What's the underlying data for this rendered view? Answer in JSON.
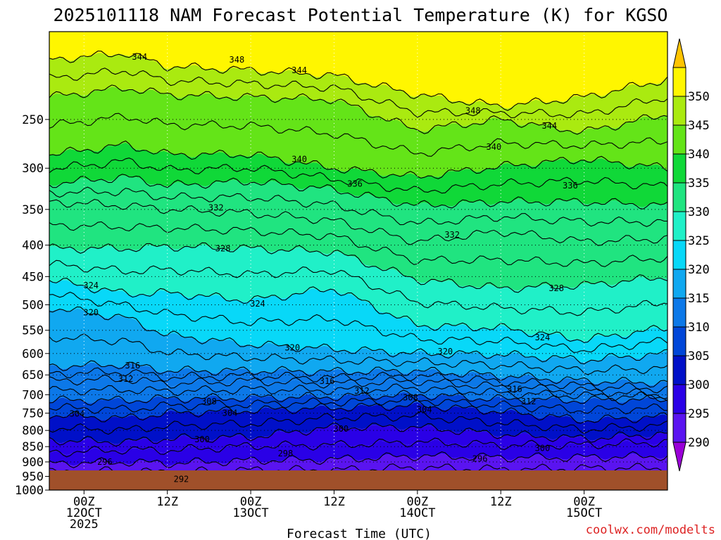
{
  "chart_data": {
    "type": "heatmap",
    "title": "2025101118 NAM Forecast Potential Temperature (K) for KGSO",
    "xlabel": "Forecast Time (UTC)",
    "ylabel": "",
    "credit": "coolwx.com/modelts",
    "x_range_hours": [
      -5,
      84
    ],
    "y_range_hpa": [
      1000,
      180
    ],
    "y_ticks": [
      "250",
      "300",
      "350",
      "400",
      "450",
      "500",
      "550",
      "600",
      "650",
      "700",
      "750",
      "800",
      "850",
      "900",
      "950",
      "1000"
    ],
    "x_ticks": [
      {
        "hour": 0,
        "lines": [
          "00Z",
          "12OCT",
          "2025"
        ]
      },
      {
        "hour": 12,
        "lines": [
          "12Z"
        ]
      },
      {
        "hour": 24,
        "lines": [
          "00Z",
          "13OCT"
        ]
      },
      {
        "hour": 36,
        "lines": [
          "12Z"
        ]
      },
      {
        "hour": 48,
        "lines": [
          "00Z",
          "14OCT"
        ]
      },
      {
        "hour": 60,
        "lines": [
          "12Z"
        ]
      },
      {
        "hour": 72,
        "lines": [
          "00Z",
          "15OCT"
        ]
      }
    ],
    "colorbar": {
      "min": 285,
      "max": 355,
      "labels": [
        "290",
        "295",
        "300",
        "305",
        "310",
        "315",
        "320",
        "325",
        "330",
        "335",
        "340",
        "345",
        "350"
      ],
      "colors": [
        "#9a00d8",
        "#5a14f0",
        "#2a00e6",
        "#0010c8",
        "#0046d8",
        "#0c78e8",
        "#10a8f0",
        "#08d8f8",
        "#20f0c8",
        "#20e480",
        "#10d838",
        "#64e418",
        "#aaea10",
        "#fff600",
        "#ffc400"
      ]
    },
    "contours": [
      {
        "value": 292,
        "label": "292",
        "profile": [
          [
            -5,
            968
          ],
          [
            6,
            962
          ],
          [
            12,
            970
          ],
          [
            24,
            962
          ],
          [
            36,
            966
          ],
          [
            48,
            960
          ],
          [
            60,
            968
          ],
          [
            72,
            960
          ],
          [
            84,
            962
          ]
        ]
      },
      {
        "value": 296,
        "label": "296",
        "profile": [
          [
            -5,
            905
          ],
          [
            6,
            900
          ],
          [
            12,
            905
          ],
          [
            24,
            895
          ],
          [
            36,
            892
          ],
          [
            48,
            880
          ],
          [
            60,
            885
          ],
          [
            72,
            885
          ],
          [
            84,
            880
          ]
        ]
      },
      {
        "value": 298,
        "label": "298",
        "profile": [
          [
            -5,
            870
          ],
          [
            6,
            860
          ],
          [
            12,
            862
          ],
          [
            24,
            848
          ],
          [
            36,
            845
          ],
          [
            48,
            835
          ],
          [
            60,
            845
          ],
          [
            72,
            845
          ],
          [
            84,
            835
          ]
        ]
      },
      {
        "value": 300,
        "label": "300",
        "profile": [
          [
            -5,
            830
          ],
          [
            6,
            835
          ],
          [
            12,
            825
          ],
          [
            24,
            820
          ],
          [
            36,
            790
          ],
          [
            48,
            790
          ],
          [
            60,
            812
          ],
          [
            72,
            825
          ],
          [
            84,
            810
          ]
        ]
      },
      {
        "value": 304,
        "label": "304",
        "profile": [
          [
            -5,
            755
          ],
          [
            6,
            765
          ],
          [
            12,
            750
          ],
          [
            24,
            742
          ],
          [
            36,
            735
          ],
          [
            48,
            728
          ],
          [
            60,
            745
          ],
          [
            72,
            770
          ],
          [
            84,
            760
          ]
        ]
      },
      {
        "value": 308,
        "label": "308",
        "profile": [
          [
            -5,
            715
          ],
          [
            6,
            715
          ],
          [
            12,
            710
          ],
          [
            24,
            708
          ],
          [
            36,
            705
          ],
          [
            48,
            700
          ],
          [
            60,
            712
          ],
          [
            72,
            715
          ],
          [
            84,
            712
          ]
        ]
      },
      {
        "value": 312,
        "label": "312",
        "profile": [
          [
            -5,
            665
          ],
          [
            6,
            660
          ],
          [
            12,
            672
          ],
          [
            24,
            665
          ],
          [
            36,
            672
          ],
          [
            48,
            665
          ],
          [
            60,
            680
          ],
          [
            72,
            690
          ],
          [
            84,
            700
          ]
        ]
      },
      {
        "value": 316,
        "label": "316",
        "profile": [
          [
            -5,
            630
          ],
          [
            6,
            625
          ],
          [
            12,
            640
          ],
          [
            24,
            640
          ],
          [
            36,
            642
          ],
          [
            48,
            640
          ],
          [
            60,
            652
          ],
          [
            72,
            665
          ],
          [
            84,
            670
          ]
        ]
      },
      {
        "value": 320,
        "label": "320",
        "profile": [
          [
            -5,
            505
          ],
          [
            6,
            525
          ],
          [
            12,
            560
          ],
          [
            24,
            580
          ],
          [
            36,
            590
          ],
          [
            48,
            600
          ],
          [
            60,
            602
          ],
          [
            72,
            615
          ],
          [
            84,
            600
          ]
        ]
      },
      {
        "value": 324,
        "label": "324",
        "profile": [
          [
            -5,
            455
          ],
          [
            6,
            480
          ],
          [
            12,
            478
          ],
          [
            24,
            492
          ],
          [
            36,
            470
          ],
          [
            48,
            540
          ],
          [
            60,
            545
          ],
          [
            72,
            570
          ],
          [
            84,
            545
          ]
        ]
      },
      {
        "value": 328,
        "label": "328",
        "profile": [
          [
            -5,
            405
          ],
          [
            6,
            405
          ],
          [
            12,
            402
          ],
          [
            24,
            405
          ],
          [
            36,
            410
          ],
          [
            48,
            455
          ],
          [
            60,
            470
          ],
          [
            72,
            465
          ],
          [
            84,
            450
          ]
        ]
      },
      {
        "value": 332,
        "label": "332",
        "profile": [
          [
            -5,
            340
          ],
          [
            6,
            345
          ],
          [
            12,
            350
          ],
          [
            24,
            355
          ],
          [
            36,
            365
          ],
          [
            48,
            395
          ],
          [
            60,
            380
          ],
          [
            72,
            395
          ],
          [
            84,
            390
          ]
        ]
      },
      {
        "value": 336,
        "label": "336",
        "profile": [
          [
            -5,
            318
          ],
          [
            6,
            310
          ],
          [
            12,
            320
          ],
          [
            24,
            315
          ],
          [
            36,
            325
          ],
          [
            48,
            345
          ],
          [
            60,
            340
          ],
          [
            72,
            340
          ],
          [
            84,
            345
          ]
        ]
      },
      {
        "value": 340,
        "label": "340",
        "profile": [
          [
            -5,
            285
          ],
          [
            6,
            275
          ],
          [
            12,
            285
          ],
          [
            24,
            285
          ],
          [
            36,
            300
          ],
          [
            48,
            310
          ],
          [
            60,
            298
          ],
          [
            72,
            290
          ],
          [
            84,
            300
          ]
        ]
      },
      {
        "value": 344,
        "label": "344",
        "profile": [
          [
            -5,
            230
          ],
          [
            6,
            222
          ],
          [
            12,
            228
          ],
          [
            24,
            230
          ],
          [
            36,
            232
          ],
          [
            48,
            260
          ],
          [
            60,
            250
          ],
          [
            72,
            262
          ],
          [
            84,
            245
          ]
        ]
      },
      {
        "value": 348,
        "label": "348",
        "profile": [
          [
            -5,
            200
          ],
          [
            6,
            195
          ],
          [
            12,
            205
          ],
          [
            24,
            208
          ],
          [
            36,
            212
          ],
          [
            48,
            228
          ],
          [
            60,
            238
          ],
          [
            72,
            230
          ],
          [
            84,
            215
          ]
        ]
      }
    ],
    "labels": [
      {
        "value": 292,
        "label": "292",
        "hour": 14,
        "p": 960
      },
      {
        "value": 296,
        "label": "296",
        "hour": 3,
        "p": 900
      },
      {
        "value": 298,
        "label": "298",
        "hour": 29,
        "p": 872
      },
      {
        "value": 296,
        "label": "296",
        "hour": 57,
        "p": 890
      },
      {
        "value": 300,
        "label": "300",
        "hour": 17,
        "p": 828
      },
      {
        "value": 300,
        "label": "300",
        "hour": 37,
        "p": 795
      },
      {
        "value": 300,
        "label": "300",
        "hour": 66,
        "p": 855
      },
      {
        "value": 304,
        "label": "304",
        "hour": -1,
        "p": 752
      },
      {
        "value": 304,
        "label": "304",
        "hour": 21,
        "p": 750
      },
      {
        "value": 304,
        "label": "304",
        "hour": 49,
        "p": 740
      },
      {
        "value": 308,
        "label": "308",
        "hour": 18,
        "p": 718
      },
      {
        "value": 308,
        "label": "308",
        "hour": 47,
        "p": 708
      },
      {
        "value": 312,
        "label": "312",
        "hour": 6,
        "p": 660
      },
      {
        "value": 312,
        "label": "312",
        "hour": 40,
        "p": 690
      },
      {
        "value": 312,
        "label": "312",
        "hour": 64,
        "p": 718
      },
      {
        "value": 316,
        "label": "316",
        "hour": 7,
        "p": 628
      },
      {
        "value": 316,
        "label": "316",
        "hour": 35,
        "p": 665
      },
      {
        "value": 316,
        "label": "316",
        "hour": 62,
        "p": 686
      },
      {
        "value": 320,
        "label": "320",
        "hour": 1,
        "p": 515
      },
      {
        "value": 320,
        "label": "320",
        "hour": 30,
        "p": 587
      },
      {
        "value": 320,
        "label": "320",
        "hour": 52,
        "p": 596
      },
      {
        "value": 324,
        "label": "324",
        "hour": 1,
        "p": 465
      },
      {
        "value": 324,
        "label": "324",
        "hour": 25,
        "p": 498
      },
      {
        "value": 324,
        "label": "324",
        "hour": 66,
        "p": 565
      },
      {
        "value": 328,
        "label": "328",
        "hour": 20,
        "p": 405
      },
      {
        "value": 328,
        "label": "328",
        "hour": 68,
        "p": 470
      },
      {
        "value": 332,
        "label": "332",
        "hour": 19,
        "p": 348
      },
      {
        "value": 332,
        "label": "332",
        "hour": 53,
        "p": 385
      },
      {
        "value": 336,
        "label": "336",
        "hour": 39,
        "p": 318
      },
      {
        "value": 336,
        "label": "336",
        "hour": 70,
        "p": 320
      },
      {
        "value": 340,
        "label": "340",
        "hour": 31,
        "p": 290
      },
      {
        "value": 340,
        "label": "340",
        "hour": 59,
        "p": 277
      },
      {
        "value": 344,
        "label": "344",
        "hour": 8,
        "p": 198
      },
      {
        "value": 344,
        "label": "344",
        "hour": 31,
        "p": 208
      },
      {
        "value": 344,
        "label": "344",
        "hour": 67,
        "p": 256
      },
      {
        "value": 348,
        "label": "348",
        "hour": 22,
        "p": 200
      },
      {
        "value": 348,
        "label": "348",
        "hour": 56,
        "p": 242
      }
    ]
  }
}
